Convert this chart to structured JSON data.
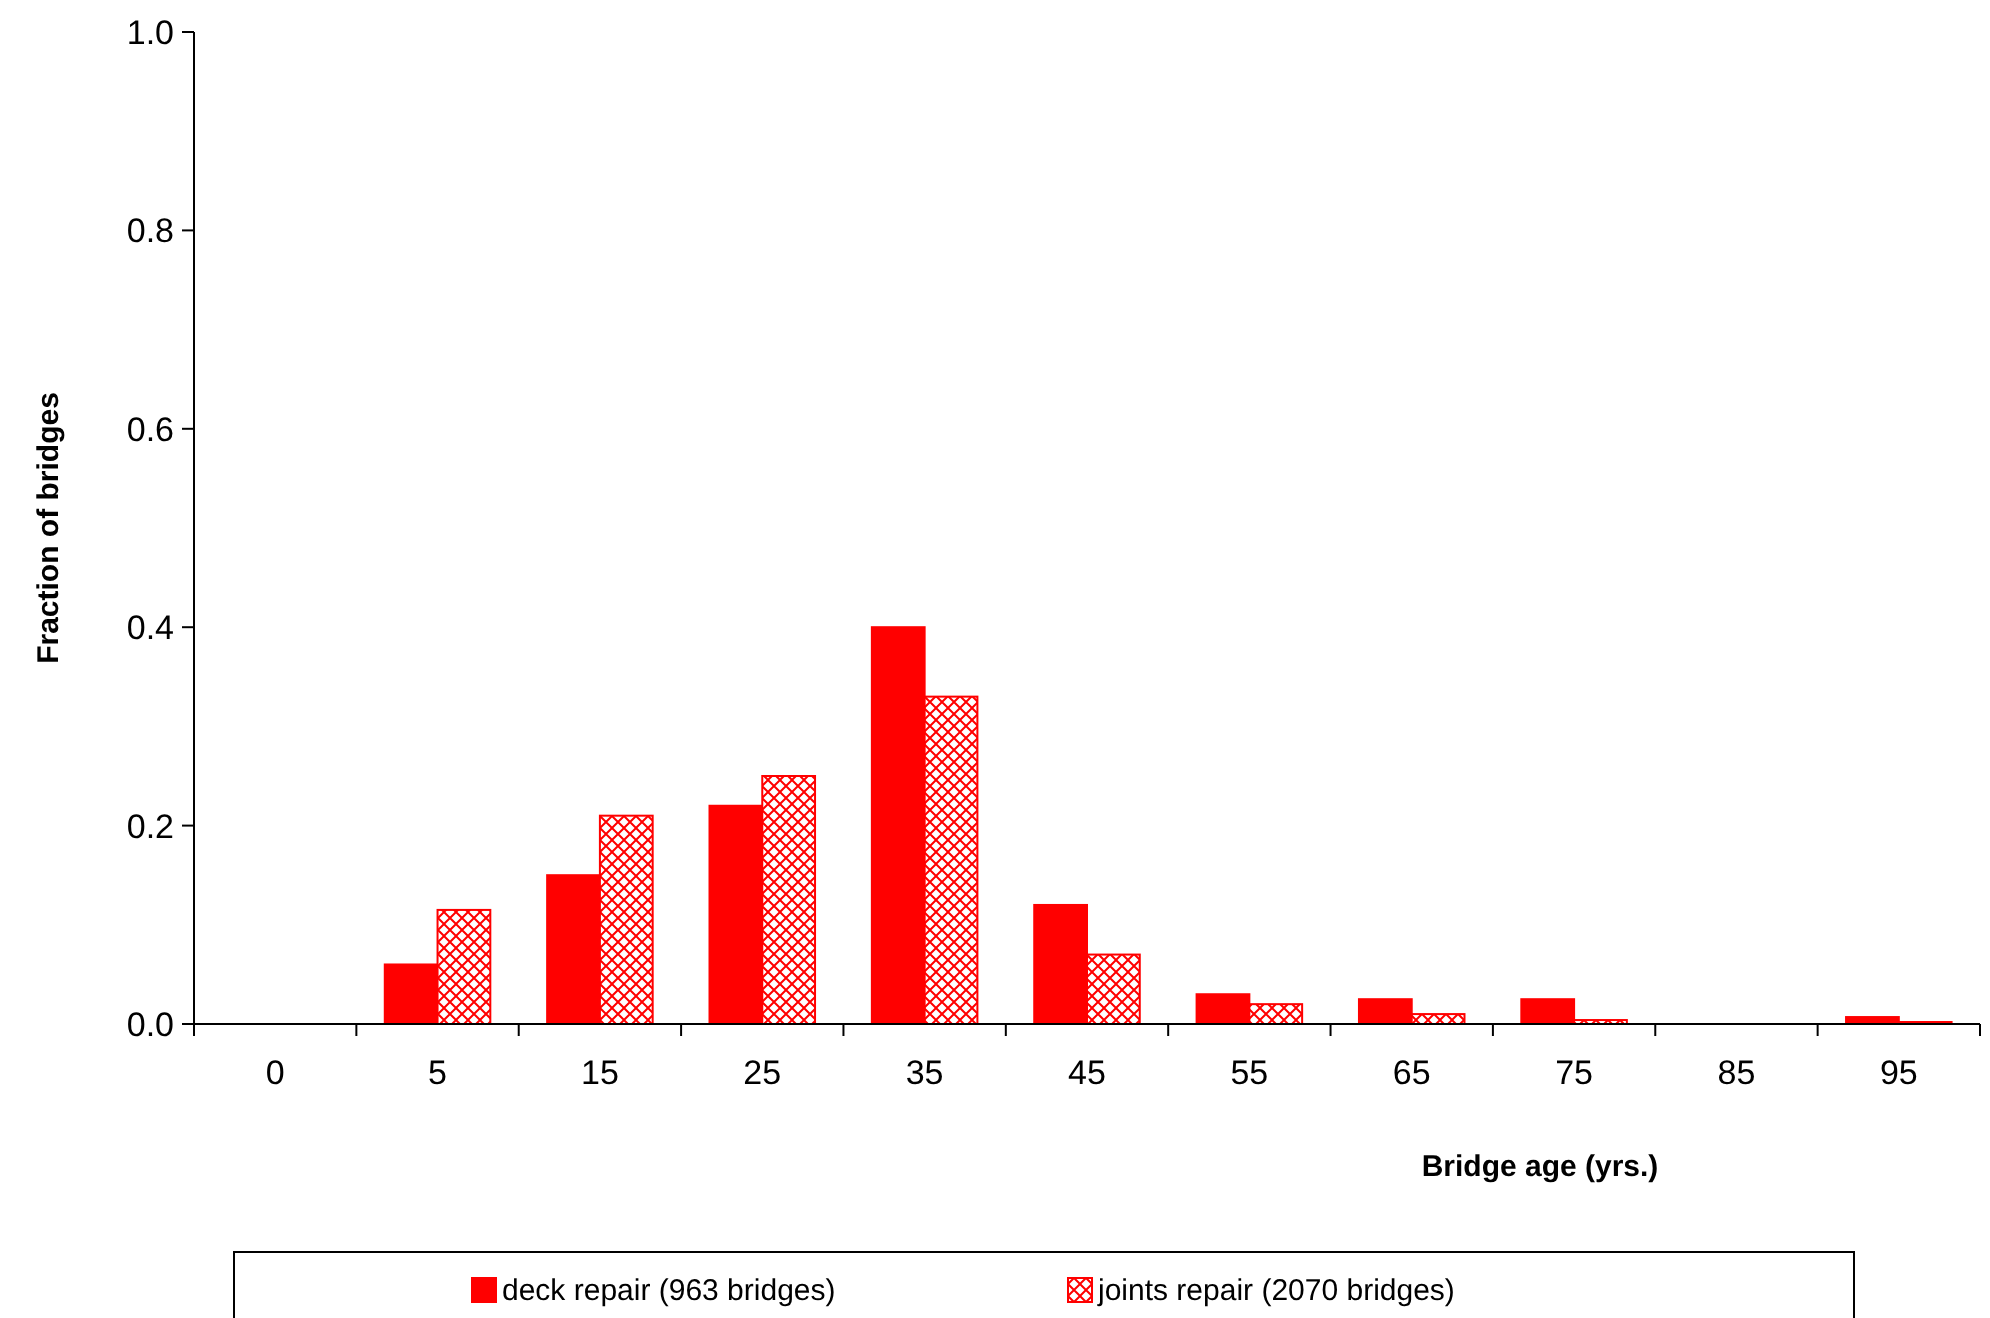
{
  "chart_data": {
    "type": "bar",
    "xlabel": "Bridge age (yrs.)",
    "ylabel": "Fraction of bridges",
    "categories": [
      "0",
      "5",
      "15",
      "25",
      "35",
      "45",
      "55",
      "65",
      "75",
      "85",
      "95"
    ],
    "series": [
      {
        "name": "deck repair (963 bridges)",
        "color": "#ff0000",
        "values": [
          0,
          0.06,
          0.15,
          0.22,
          0.4,
          0.12,
          0.03,
          0.025,
          0.025,
          0,
          0.007
        ]
      },
      {
        "name": "joints repair (2070 bridges)",
        "color": "#ff0000",
        "values": [
          0,
          0.115,
          0.21,
          0.25,
          0.33,
          0.07,
          0.02,
          0.01,
          0.004,
          0,
          0.002
        ]
      }
    ],
    "ylim": [
      0,
      1
    ],
    "yticks": [
      {
        "value": 0,
        "label": "0.0"
      },
      {
        "value": 0.2,
        "label": "0.2"
      },
      {
        "value": 0.4,
        "label": "0.4"
      },
      {
        "value": 0.6,
        "label": "0.6"
      },
      {
        "value": 0.8,
        "label": "0.8"
      },
      {
        "value": 1,
        "label": "1.0"
      }
    ],
    "grid": false,
    "legend": "bottom"
  }
}
